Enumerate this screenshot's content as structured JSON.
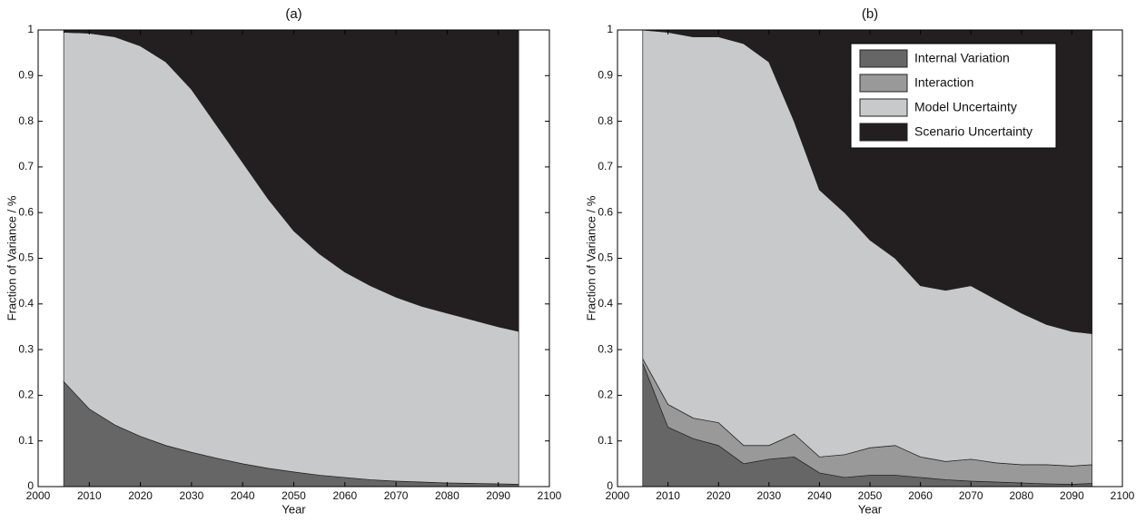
{
  "chart_data": [
    {
      "type": "area",
      "title": "(a)",
      "x_label": "Year",
      "y_label": "Fraction of Variance / %",
      "x": [
        2005,
        2010,
        2015,
        2020,
        2025,
        2030,
        2035,
        2040,
        2045,
        2050,
        2055,
        2060,
        2065,
        2070,
        2075,
        2080,
        2085,
        2090,
        2094
      ],
      "series": [
        {
          "color": "#666666",
          "values": [
            0.23,
            0.17,
            0.135,
            0.11,
            0.09,
            0.075,
            0.062,
            0.05,
            0.04,
            0.032,
            0.025,
            0.02,
            0.015,
            0.012,
            0.01,
            0.008,
            0.007,
            0.006,
            0.005
          ]
        },
        {
          "color": "#c8c9cb",
          "values": [
            0.765,
            0.823,
            0.85,
            0.855,
            0.84,
            0.795,
            0.728,
            0.66,
            0.59,
            0.528,
            0.485,
            0.45,
            0.425,
            0.403,
            0.385,
            0.372,
            0.358,
            0.344,
            0.335
          ]
        },
        {
          "color": "#231f20",
          "values": [
            0.005,
            0.007,
            0.015,
            0.035,
            0.07,
            0.13,
            0.21,
            0.29,
            0.37,
            0.44,
            0.49,
            0.53,
            0.56,
            0.585,
            0.605,
            0.62,
            0.635,
            0.65,
            0.66
          ]
        }
      ],
      "xlim": [
        2000,
        2100
      ],
      "xticks": [
        2000,
        2010,
        2020,
        2030,
        2040,
        2050,
        2060,
        2070,
        2080,
        2090,
        2100
      ],
      "ylim": [
        0,
        1
      ],
      "yticks": [
        0,
        0.1,
        0.2,
        0.3,
        0.4,
        0.5,
        0.6,
        0.7,
        0.8,
        0.9,
        1
      ]
    },
    {
      "type": "area",
      "title": "(b)",
      "x_label": "Year",
      "y_label": "Fraction of Variance / %",
      "legend": "upper right",
      "x": [
        2005,
        2010,
        2015,
        2020,
        2025,
        2030,
        2035,
        2040,
        2045,
        2050,
        2055,
        2060,
        2065,
        2070,
        2075,
        2080,
        2085,
        2090,
        2094
      ],
      "series": [
        {
          "name": "Internal Variation",
          "color": "#666666",
          "values": [
            0.27,
            0.13,
            0.105,
            0.09,
            0.05,
            0.06,
            0.065,
            0.03,
            0.02,
            0.025,
            0.025,
            0.02,
            0.015,
            0.012,
            0.01,
            0.008,
            0.006,
            0.005,
            0.007
          ]
        },
        {
          "name": "Interaction",
          "color": "#999999",
          "values": [
            0.01,
            0.05,
            0.045,
            0.05,
            0.04,
            0.03,
            0.05,
            0.035,
            0.05,
            0.06,
            0.065,
            0.045,
            0.04,
            0.048,
            0.042,
            0.04,
            0.042,
            0.04,
            0.041
          ]
        },
        {
          "name": "Model Uncertainty",
          "color": "#c8c9cb",
          "values": [
            0.72,
            0.815,
            0.835,
            0.845,
            0.88,
            0.84,
            0.685,
            0.585,
            0.53,
            0.455,
            0.41,
            0.375,
            0.375,
            0.38,
            0.358,
            0.332,
            0.307,
            0.295,
            0.287
          ]
        },
        {
          "name": "Scenario Uncertainty",
          "color": "#231f20",
          "values": [
            0,
            0.005,
            0.015,
            0.015,
            0.03,
            0.07,
            0.2,
            0.35,
            0.4,
            0.46,
            0.5,
            0.56,
            0.57,
            0.56,
            0.59,
            0.62,
            0.645,
            0.66,
            0.665
          ]
        }
      ],
      "xlim": [
        2000,
        2100
      ],
      "xticks": [
        2000,
        2010,
        2020,
        2030,
        2040,
        2050,
        2060,
        2070,
        2080,
        2090,
        2100
      ],
      "ylim": [
        0,
        1
      ],
      "yticks": [
        0,
        0.1,
        0.2,
        0.3,
        0.4,
        0.5,
        0.6,
        0.7,
        0.8,
        0.9,
        1
      ]
    }
  ]
}
